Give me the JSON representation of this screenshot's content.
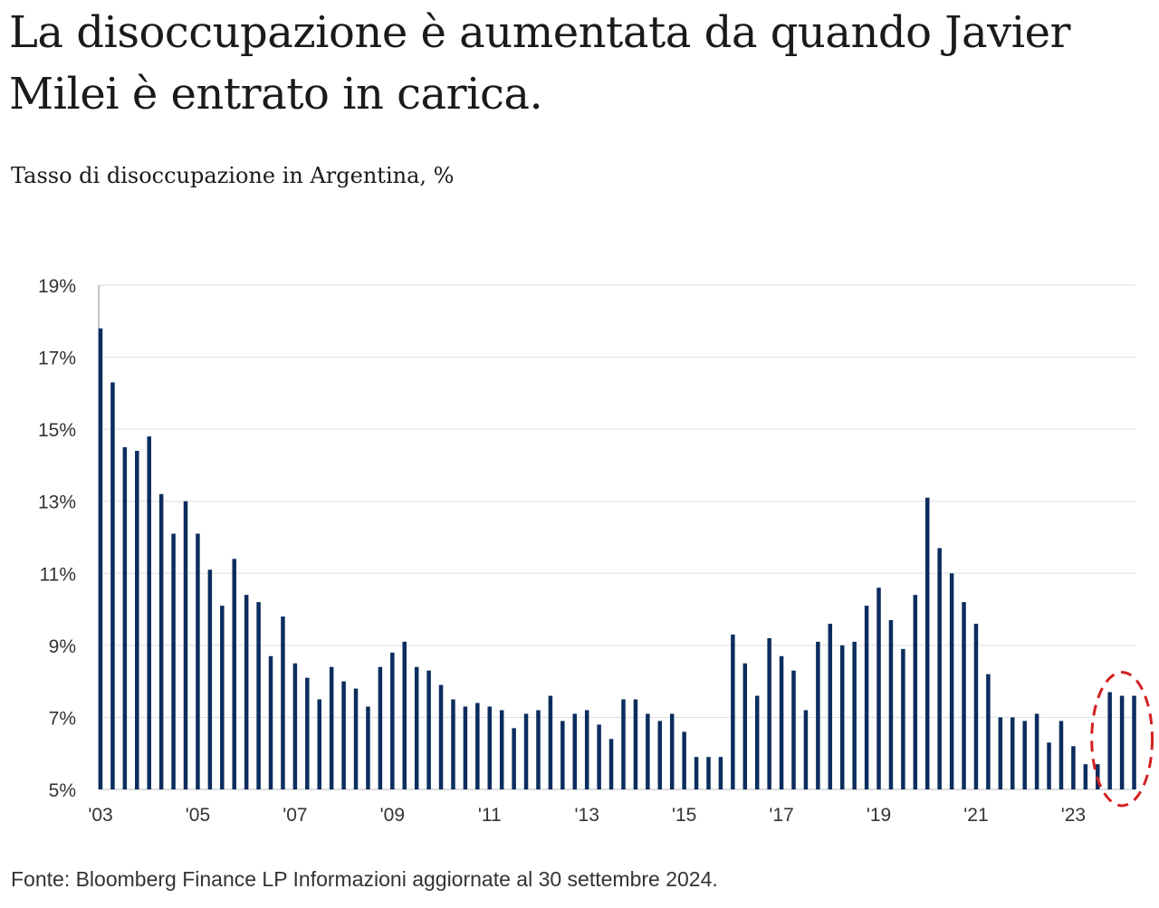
{
  "title": "La disoccupazione è aumentata da quando Javier Milei è entrato in carica.",
  "subtitle": "Tasso di disoccupazione in Argentina, %",
  "source": "Fonte: Bloomberg Finance LP Informazioni aggiornate al 30 settembre 2024.",
  "colors": {
    "bar": "#0b2d5e",
    "grid": "#dddddd",
    "axis": "#888888",
    "highlight": "#d42020"
  },
  "chart_data": {
    "type": "bar",
    "x_start": "2003-Q1",
    "frequency": "quarterly",
    "ylabel": "%",
    "ylim": [
      5,
      19
    ],
    "y_ticks": [
      5,
      7,
      9,
      11,
      13,
      15,
      17,
      19
    ],
    "y_tick_labels": [
      "5%",
      "7%",
      "9%",
      "11%",
      "13%",
      "15%",
      "17%",
      "19%"
    ],
    "x_tick_labels": [
      "'03",
      "'05",
      "'07",
      "'09",
      "'11",
      "'13",
      "'15",
      "'17",
      "'19",
      "'21",
      "'23"
    ],
    "grid": true,
    "values": [
      17.8,
      16.3,
      14.5,
      14.4,
      14.8,
      13.2,
      12.1,
      13.0,
      12.1,
      11.1,
      10.1,
      11.4,
      10.4,
      10.2,
      8.7,
      9.8,
      8.5,
      8.1,
      7.5,
      8.4,
      8.0,
      7.8,
      7.3,
      8.4,
      8.8,
      9.1,
      8.4,
      8.3,
      7.9,
      7.5,
      7.3,
      7.4,
      7.3,
      7.2,
      6.7,
      7.1,
      7.2,
      7.6,
      6.9,
      7.1,
      7.2,
      6.8,
      6.4,
      7.5,
      7.5,
      7.1,
      6.9,
      7.1,
      6.6,
      5.9,
      5.9,
      5.9,
      9.3,
      8.5,
      7.6,
      9.2,
      8.7,
      8.3,
      7.2,
      9.1,
      9.6,
      9.0,
      9.1,
      10.1,
      10.6,
      9.7,
      8.9,
      10.4,
      13.1,
      11.7,
      11.0,
      10.2,
      9.6,
      8.2,
      7.0,
      7.0,
      6.9,
      7.1,
      6.3,
      6.9,
      6.2,
      5.7,
      5.7,
      7.7,
      7.6,
      7.6
    ],
    "highlight": {
      "from_index": 83,
      "to_index": 85,
      "style": "dashed-ellipse"
    }
  }
}
